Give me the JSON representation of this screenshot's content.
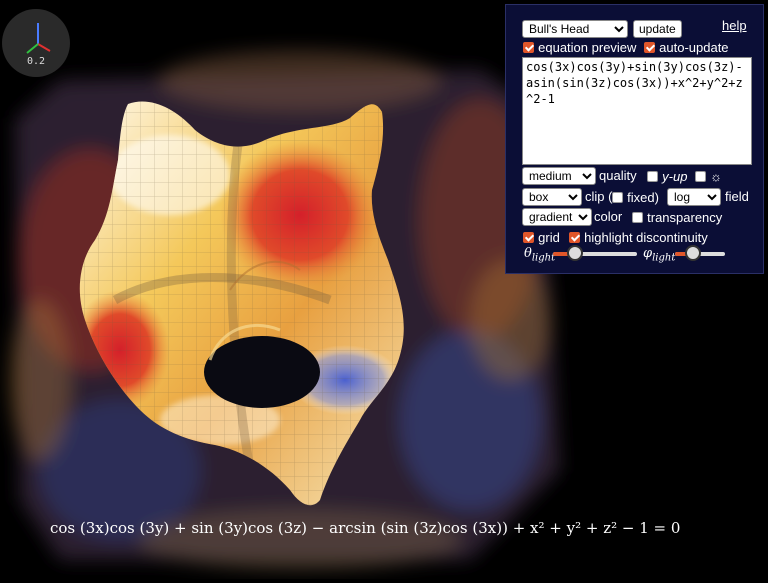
{
  "viewer": {
    "zoom_readout": "0.2"
  },
  "panel": {
    "preset": {
      "selected": "Bull's Head"
    },
    "update_label": "update",
    "help_label": "help",
    "equation_preview": {
      "label": "equation preview",
      "checked": true
    },
    "auto_update": {
      "label": "auto-update",
      "checked": true
    },
    "equation_input": "cos(3x)cos(3y)+sin(3y)cos(3z)-asin(sin(3z)cos(3x))+x^2+y^2+z^2-1",
    "quality": {
      "selected": "medium",
      "label": "quality"
    },
    "y_up": {
      "label": "y-up",
      "checked": false
    },
    "light_toggle": {
      "label": "☼",
      "checked": false
    },
    "clip": {
      "selected": "box",
      "label_prefix": "clip (",
      "fixed_label": "fixed)",
      "fixed_checked": false
    },
    "field": {
      "selected": "log",
      "label": "field"
    },
    "color": {
      "selected": "gradient",
      "label": "color"
    },
    "transparency": {
      "label": "transparency",
      "checked": false
    },
    "grid": {
      "label": "grid",
      "checked": true
    },
    "highlight_discontinuity": {
      "label": "highlight discontinuity",
      "checked": true
    },
    "theta_light": {
      "symbol": "θ",
      "sub": "light",
      "value": 0.2
    },
    "phi_light": {
      "symbol": "φ",
      "sub": "light",
      "value": 0.3
    }
  },
  "caption": {
    "equation": "cos (3x)cos (3y) + sin (3y)cos (3z) − arcsin (sin (3z)cos (3x)) + x² + y² + z² − 1 = 0"
  },
  "colors": {
    "accent": "#e0562a",
    "panel_bg": "#0b0e36",
    "surface_red": "#d8262a",
    "surface_yellow": "#f2c040",
    "surface_white": "#fbf6e8",
    "surface_blue": "#5a6fd0"
  }
}
